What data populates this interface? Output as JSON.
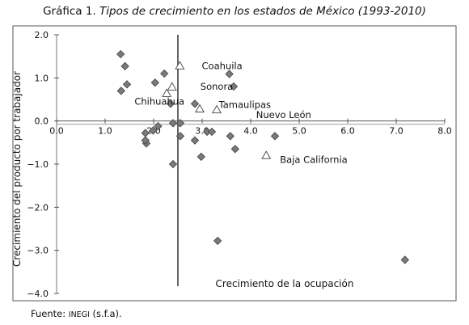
{
  "title_prefix": "Gráfica 1.",
  "title": "Tipos de crecimiento en los estados de México (1993-2010)",
  "source_prefix": "Fuente: ",
  "source_org": "INEGI",
  "source_suffix": " (s.f.a).",
  "chart_data": {
    "type": "scatter",
    "xlabel": "Crecimiento de la ocupación",
    "ylabel": "Crecimiento del producto por trabajador",
    "xlim": [
      0.0,
      8.0
    ],
    "ylim": [
      -4.0,
      2.0
    ],
    "xticks": [
      "0.0",
      "1.0",
      "2.0",
      "3.0",
      "4.0",
      "5.0",
      "6.0",
      "7.0",
      "8.0"
    ],
    "yticks": [
      "2.0",
      "1.0",
      "0.0",
      "−1.0",
      "−2.0",
      "−3.0",
      "−4.0"
    ],
    "crosshair": {
      "x": 2.5,
      "y": 0.0
    },
    "marker_colors": {
      "diamond": "#7a7a7a",
      "triangle": "#ffffff"
    },
    "series": [
      {
        "marker": "diamond",
        "points": [
          {
            "x": 1.32,
            "y": 1.55
          },
          {
            "x": 1.41,
            "y": 1.27
          },
          {
            "x": 1.45,
            "y": 0.85
          },
          {
            "x": 1.33,
            "y": 0.7
          },
          {
            "x": 2.03,
            "y": 0.89
          },
          {
            "x": 2.22,
            "y": 1.1
          },
          {
            "x": 3.56,
            "y": 1.09
          },
          {
            "x": 3.65,
            "y": 0.8
          },
          {
            "x": 2.85,
            "y": 0.4
          },
          {
            "x": 2.35,
            "y": 0.4
          },
          {
            "x": 1.83,
            "y": -0.28
          },
          {
            "x": 1.99,
            "y": -0.22
          },
          {
            "x": 2.09,
            "y": -0.12
          },
          {
            "x": 1.85,
            "y": -0.52
          },
          {
            "x": 1.83,
            "y": -0.45
          },
          {
            "x": 2.4,
            "y": -0.05
          },
          {
            "x": 2.55,
            "y": -0.05
          },
          {
            "x": 2.55,
            "y": -0.35
          },
          {
            "x": 2.85,
            "y": -0.45
          },
          {
            "x": 3.1,
            "y": -0.25
          },
          {
            "x": 3.2,
            "y": -0.25
          },
          {
            "x": 3.58,
            "y": -0.35
          },
          {
            "x": 4.5,
            "y": -0.35
          },
          {
            "x": 3.68,
            "y": -0.65
          },
          {
            "x": 2.98,
            "y": -0.83
          },
          {
            "x": 2.4,
            "y": -1.0
          },
          {
            "x": 3.32,
            "y": -2.78
          },
          {
            "x": 7.18,
            "y": -3.22
          }
        ]
      },
      {
        "marker": "triangle",
        "points": [
          {
            "x": 2.54,
            "y": 1.28
          },
          {
            "x": 2.38,
            "y": 0.79
          },
          {
            "x": 2.27,
            "y": 0.64
          },
          {
            "x": 2.95,
            "y": 0.28
          },
          {
            "x": 3.3,
            "y": 0.26
          },
          {
            "x": 4.32,
            "y": -0.8
          }
        ]
      }
    ],
    "annotations": [
      {
        "text": "Coahuila",
        "x": 3.41,
        "y": 1.28
      },
      {
        "text": "Sonora",
        "x": 3.3,
        "y": 0.8
      },
      {
        "text": "Chihuahua",
        "x": 2.12,
        "y": 0.45
      },
      {
        "text": "Tamaulipas",
        "x": 3.88,
        "y": 0.38
      },
      {
        "text": "Nuevo León",
        "x": 4.68,
        "y": 0.14
      },
      {
        "text": "Baja California",
        "x": 5.3,
        "y": -0.9
      }
    ]
  }
}
